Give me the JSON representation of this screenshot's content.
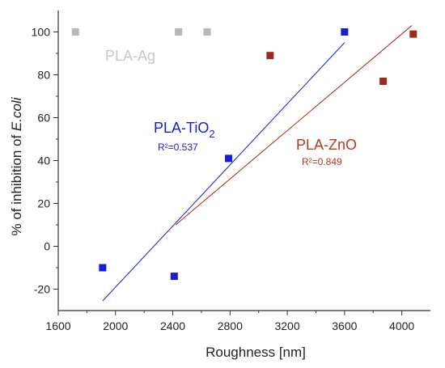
{
  "chart_data": {
    "type": "scatter",
    "xlabel": "Roughness [nm]",
    "ylabel_prefix": "% of inhibition of ",
    "ylabel_italic": "E.coli",
    "xlim": [
      1600,
      4200
    ],
    "ylim": [
      -30,
      110
    ],
    "xticks": [
      1600,
      2000,
      2400,
      2800,
      3200,
      3600,
      4000
    ],
    "yticks": [
      -20,
      0,
      20,
      40,
      60,
      80,
      100
    ],
    "grid": false,
    "legend": "none",
    "series": [
      {
        "name": "PLA-TiO2",
        "color": "#1a1adb",
        "points": [
          [
            1910,
            -10
          ],
          [
            2410,
            -14
          ],
          [
            2790,
            41
          ],
          [
            3600,
            100
          ]
        ],
        "fit": {
          "from": [
            1910,
            -25.5
          ],
          "to": [
            3600,
            95
          ]
        },
        "r2": "R²=0.537"
      },
      {
        "name": "PLA-ZnO",
        "color": "#a02a1a",
        "points": [
          [
            3080,
            89
          ],
          [
            3870,
            77
          ],
          [
            4080,
            99
          ]
        ],
        "fit": {
          "from": [
            2420,
            10
          ],
          "to": [
            4070,
            103
          ]
        },
        "r2": "R²=0.849"
      },
      {
        "name": "PLA-Ag",
        "color": "#b8b8b8",
        "points": [
          [
            1720,
            100
          ],
          [
            2440,
            100
          ],
          [
            2640,
            100
          ]
        ],
        "fit": null,
        "r2": ""
      }
    ]
  },
  "annotations": {
    "tio2_main": "PLA-TiO",
    "tio2_sub": "2",
    "tio2_r2": "R²=0.537",
    "zno_name": "PLA-ZnO",
    "zno_r2": "R²=0.849",
    "ag_name": "PLA-Ag"
  },
  "colors": {
    "tio2": "#1a1adb",
    "zno": "#b03a22",
    "ag": "#c4c4c4",
    "axis": "#333333"
  }
}
